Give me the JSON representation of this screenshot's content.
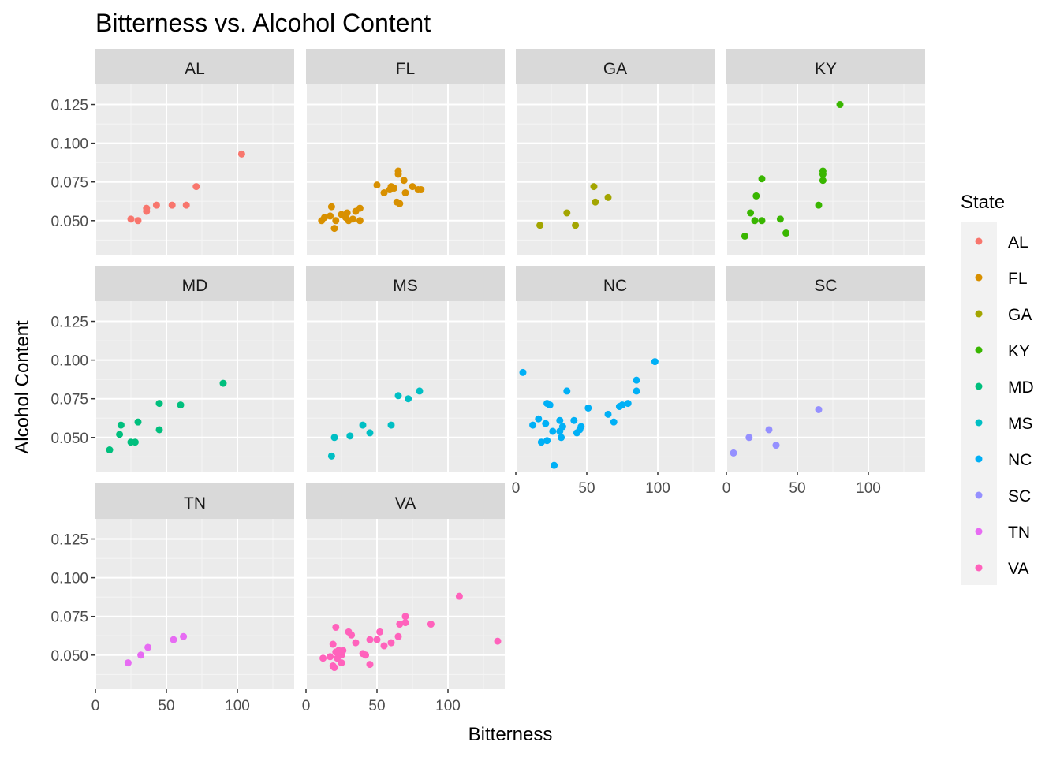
{
  "chart_data": {
    "type": "scatter",
    "title": "Bitterness vs. Alcohol Content",
    "xlabel": "Bitterness",
    "ylabel": "Alcohol Content",
    "xlim": [
      0,
      140
    ],
    "ylim": [
      0.028,
      0.138
    ],
    "x_ticks": [
      0,
      50,
      100
    ],
    "y_ticks": [
      0.05,
      0.075,
      0.1,
      0.125
    ],
    "x_tick_labels": [
      "0",
      "50",
      "100"
    ],
    "y_tick_labels": [
      "0.050",
      "0.075",
      "0.100",
      "0.125"
    ],
    "grid": true,
    "facet_by": "State",
    "legend": {
      "title": "State",
      "position": "right"
    },
    "series": [
      {
        "name": "AL",
        "color": "#F8766D",
        "points": [
          [
            25,
            0.051
          ],
          [
            30,
            0.05
          ],
          [
            36,
            0.056
          ],
          [
            36,
            0.058
          ],
          [
            43,
            0.06
          ],
          [
            54,
            0.06
          ],
          [
            64,
            0.06
          ],
          [
            71,
            0.072
          ],
          [
            103,
            0.093
          ]
        ]
      },
      {
        "name": "FL",
        "color": "#D89000",
        "points": [
          [
            11,
            0.05
          ],
          [
            13,
            0.052
          ],
          [
            17,
            0.053
          ],
          [
            18,
            0.059
          ],
          [
            20,
            0.045
          ],
          [
            21,
            0.05
          ],
          [
            25,
            0.054
          ],
          [
            28,
            0.052
          ],
          [
            29,
            0.055
          ],
          [
            30,
            0.05
          ],
          [
            33,
            0.051
          ],
          [
            35,
            0.056
          ],
          [
            38,
            0.058
          ],
          [
            38,
            0.05
          ],
          [
            50,
            0.073
          ],
          [
            55,
            0.068
          ],
          [
            59,
            0.07
          ],
          [
            60,
            0.072
          ],
          [
            62,
            0.071
          ],
          [
            65,
            0.082
          ],
          [
            65,
            0.08
          ],
          [
            64,
            0.062
          ],
          [
            66,
            0.061
          ],
          [
            69,
            0.076
          ],
          [
            70,
            0.068
          ],
          [
            75,
            0.072
          ],
          [
            79,
            0.07
          ],
          [
            81,
            0.07
          ]
        ]
      },
      {
        "name": "GA",
        "color": "#A3A500",
        "points": [
          [
            17,
            0.047
          ],
          [
            36,
            0.055
          ],
          [
            42,
            0.047
          ],
          [
            55,
            0.072
          ],
          [
            56,
            0.062
          ],
          [
            65,
            0.065
          ]
        ]
      },
      {
        "name": "KY",
        "color": "#39B600",
        "points": [
          [
            13,
            0.04
          ],
          [
            17,
            0.055
          ],
          [
            20,
            0.05
          ],
          [
            21,
            0.066
          ],
          [
            25,
            0.077
          ],
          [
            25,
            0.05
          ],
          [
            38,
            0.051
          ],
          [
            42,
            0.042
          ],
          [
            65,
            0.06
          ],
          [
            68,
            0.082
          ],
          [
            68,
            0.08
          ],
          [
            68,
            0.076
          ],
          [
            80,
            0.125
          ]
        ]
      },
      {
        "name": "MD",
        "color": "#00BF7D",
        "points": [
          [
            10,
            0.042
          ],
          [
            17,
            0.052
          ],
          [
            18,
            0.058
          ],
          [
            25,
            0.047
          ],
          [
            28,
            0.047
          ],
          [
            30,
            0.06
          ],
          [
            45,
            0.072
          ],
          [
            45,
            0.055
          ],
          [
            60,
            0.071
          ],
          [
            90,
            0.085
          ]
        ]
      },
      {
        "name": "MS",
        "color": "#00BFC4",
        "points": [
          [
            18,
            0.038
          ],
          [
            20,
            0.05
          ],
          [
            31,
            0.051
          ],
          [
            40,
            0.058
          ],
          [
            45,
            0.053
          ],
          [
            60,
            0.058
          ],
          [
            65,
            0.077
          ],
          [
            72,
            0.075
          ],
          [
            80,
            0.08
          ]
        ]
      },
      {
        "name": "NC",
        "color": "#00B0F6",
        "points": [
          [
            5,
            0.092
          ],
          [
            12,
            0.058
          ],
          [
            16,
            0.062
          ],
          [
            18,
            0.047
          ],
          [
            21,
            0.059
          ],
          [
            22,
            0.072
          ],
          [
            22,
            0.048
          ],
          [
            24,
            0.071
          ],
          [
            26,
            0.054
          ],
          [
            27,
            0.032
          ],
          [
            31,
            0.061
          ],
          [
            31,
            0.054
          ],
          [
            32,
            0.05
          ],
          [
            33,
            0.057
          ],
          [
            36,
            0.08
          ],
          [
            41,
            0.061
          ],
          [
            43,
            0.053
          ],
          [
            45,
            0.055
          ],
          [
            46,
            0.057
          ],
          [
            51,
            0.069
          ],
          [
            65,
            0.065
          ],
          [
            69,
            0.06
          ],
          [
            73,
            0.07
          ],
          [
            75,
            0.071
          ],
          [
            79,
            0.072
          ],
          [
            85,
            0.08
          ],
          [
            85,
            0.087
          ],
          [
            98,
            0.099
          ]
        ]
      },
      {
        "name": "SC",
        "color": "#9590FF",
        "points": [
          [
            5,
            0.04
          ],
          [
            16,
            0.05
          ],
          [
            30,
            0.055
          ],
          [
            35,
            0.045
          ],
          [
            65,
            0.068
          ]
        ]
      },
      {
        "name": "TN",
        "color": "#E76BF3",
        "points": [
          [
            23,
            0.045
          ],
          [
            32,
            0.05
          ],
          [
            37,
            0.055
          ],
          [
            55,
            0.06
          ],
          [
            62,
            0.062
          ]
        ]
      },
      {
        "name": "VA",
        "color": "#FF62BC",
        "points": [
          [
            12,
            0.048
          ],
          [
            17,
            0.049
          ],
          [
            19,
            0.043
          ],
          [
            19,
            0.057
          ],
          [
            20,
            0.042
          ],
          [
            21,
            0.068
          ],
          [
            21,
            0.052
          ],
          [
            22,
            0.048
          ],
          [
            23,
            0.053
          ],
          [
            25,
            0.05
          ],
          [
            25,
            0.045
          ],
          [
            26,
            0.053
          ],
          [
            30,
            0.065
          ],
          [
            32,
            0.063
          ],
          [
            35,
            0.058
          ],
          [
            40,
            0.051
          ],
          [
            42,
            0.05
          ],
          [
            45,
            0.06
          ],
          [
            45,
            0.044
          ],
          [
            50,
            0.06
          ],
          [
            52,
            0.065
          ],
          [
            55,
            0.056
          ],
          [
            60,
            0.058
          ],
          [
            65,
            0.062
          ],
          [
            66,
            0.07
          ],
          [
            70,
            0.075
          ],
          [
            70,
            0.071
          ],
          [
            88,
            0.07
          ],
          [
            108,
            0.088
          ],
          [
            135,
            0.059
          ]
        ]
      }
    ]
  }
}
